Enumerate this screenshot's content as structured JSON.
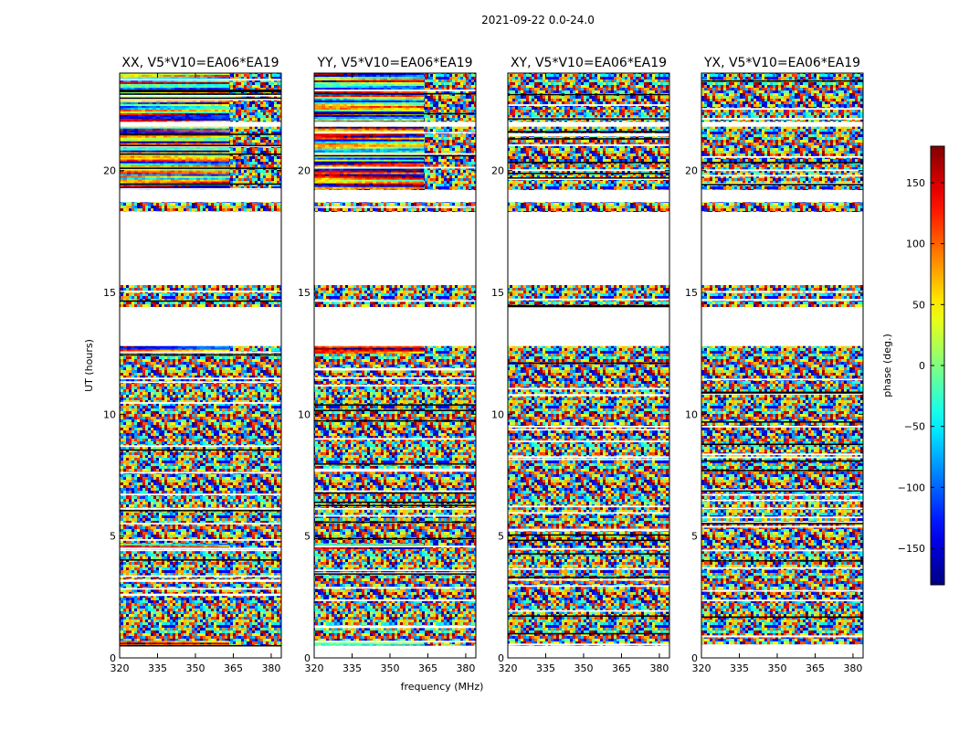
{
  "figure": {
    "suptitle": "2021-09-22 0.0-24.0",
    "xlabel": "frequency (MHz)",
    "ylabel": "UT (hours)"
  },
  "colorbar": {
    "label": "phase (deg.)",
    "min": -180,
    "max": 180,
    "ticks": [
      150,
      100,
      50,
      0,
      -50,
      -100,
      -150
    ],
    "tick_labels": [
      "150",
      "100",
      "50",
      "0",
      "−50",
      "−100",
      "−150"
    ],
    "colormap": "jet"
  },
  "chart_data": [
    {
      "type": "heatmap",
      "title": "XX, V5*V10=EA06*EA19",
      "xlabel": "frequency (MHz)",
      "ylabel": "UT (hours)",
      "xlim": [
        320,
        384
      ],
      "ylim": [
        0,
        24
      ],
      "xticks": [
        320,
        335,
        350,
        365,
        380
      ],
      "yticks": [
        0,
        5,
        10,
        15,
        20
      ],
      "z_label": "phase (deg.)",
      "z_range": [
        -180,
        180
      ],
      "smooth_freq_range": [
        320,
        362
      ],
      "noisy_freq_range": [
        362,
        384
      ],
      "coherent_time_ranges": [
        [
          0.5,
          0.7
        ],
        [
          4.5,
          4.7
        ],
        [
          12.5,
          12.8
        ],
        [
          19.3,
          21.8
        ],
        [
          22.0,
          24.0
        ]
      ],
      "blank_time_ranges": [
        [
          12.8,
          14.4
        ],
        [
          15.3,
          18.3
        ],
        [
          18.7,
          19.2
        ],
        [
          21.8,
          22.0
        ],
        [
          0.0,
          0.5
        ]
      ]
    },
    {
      "type": "heatmap",
      "title": "YY, V5*V10=EA06*EA19",
      "xlabel": "frequency (MHz)",
      "ylabel": "UT (hours)",
      "xlim": [
        320,
        384
      ],
      "ylim": [
        0,
        24
      ],
      "xticks": [
        320,
        335,
        350,
        365,
        380
      ],
      "yticks": [
        0,
        5,
        10,
        15,
        20
      ],
      "z_label": "phase (deg.)",
      "z_range": [
        -180,
        180
      ],
      "smooth_freq_range": [
        320,
        362
      ],
      "noisy_freq_range": [
        362,
        384
      ],
      "coherent_time_ranges": [
        [
          0.5,
          0.7
        ],
        [
          4.5,
          4.7
        ],
        [
          12.5,
          12.8
        ],
        [
          19.3,
          21.8
        ],
        [
          22.0,
          24.0
        ]
      ],
      "blank_time_ranges": [
        [
          12.8,
          14.4
        ],
        [
          15.3,
          18.3
        ],
        [
          18.7,
          19.2
        ],
        [
          21.8,
          22.0
        ],
        [
          0.0,
          0.5
        ]
      ]
    },
    {
      "type": "heatmap",
      "title": "XY, V5*V10=EA06*EA19",
      "xlabel": "",
      "ylabel": "",
      "xlim": [
        320,
        384
      ],
      "ylim": [
        0,
        24
      ],
      "xticks": [
        320,
        335,
        350,
        365,
        380
      ],
      "yticks": [
        0,
        5,
        10,
        15,
        20
      ],
      "z_label": "phase (deg.)",
      "z_range": [
        -180,
        180
      ],
      "blank_time_ranges": [
        [
          12.8,
          14.4
        ],
        [
          15.3,
          18.3
        ],
        [
          18.7,
          19.2
        ],
        [
          21.8,
          22.0
        ],
        [
          0.0,
          0.5
        ]
      ]
    },
    {
      "type": "heatmap",
      "title": "YX, V5*V10=EA06*EA19",
      "xlabel": "",
      "ylabel": "",
      "xlim": [
        320,
        384
      ],
      "ylim": [
        0,
        24
      ],
      "xticks": [
        320,
        335,
        350,
        365,
        380
      ],
      "yticks": [
        0,
        5,
        10,
        15,
        20
      ],
      "z_label": "phase (deg.)",
      "z_range": [
        -180,
        180
      ],
      "blank_time_ranges": [
        [
          12.8,
          14.4
        ],
        [
          15.3,
          18.3
        ],
        [
          18.7,
          19.2
        ],
        [
          21.8,
          22.0
        ],
        [
          0.0,
          0.5
        ]
      ]
    }
  ]
}
